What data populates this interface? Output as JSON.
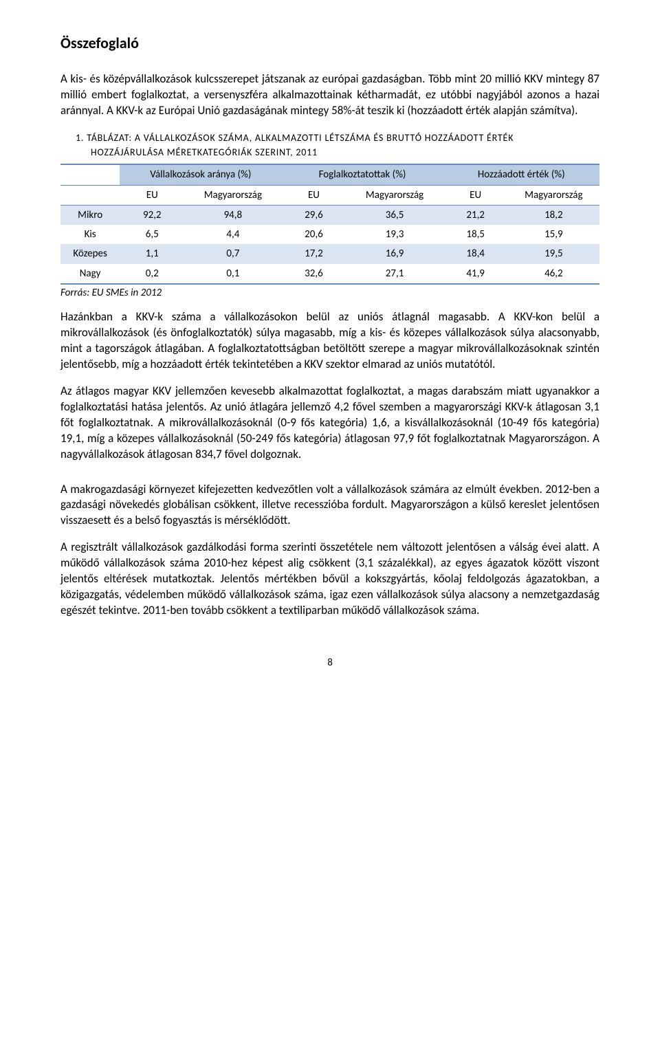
{
  "title": "Összefoglaló",
  "para1": "A kis- és középvállalkozások kulcsszerepet játszanak az európai gazdaságban. Több mint 20 millió KKV mintegy 87 millió embert foglalkoztat, a versenyszféra alkalmazottainak kétharmadát, ez utóbbi nagyjából azonos a hazai aránnyal. A KKV-k az Európai Unió gazdaságának mintegy 58%-át teszik ki (hozzáadott érték alapján számítva).",
  "caption_num": "1.  TÁBLÁZAT: A VÁLLALKOZÁSOK SZÁMA, ALKALMAZOTTI LÉTSZÁMA ÉS BRUTTÓ HOZZÁADOTT ÉRTÉK",
  "caption_rest": "HOZZÁJÁRULÁSA MÉRETKATEGÓRIÁK SZERINT, 2011",
  "table": {
    "group_headers": [
      "Vállalkozások aránya (%)",
      "Foglalkoztatottak (%)",
      "Hozzáadott érték (%)"
    ],
    "sub_headers": [
      "EU",
      "Magyarország",
      "EU",
      "Magyarország",
      "EU",
      "Magyarország"
    ],
    "rows": [
      {
        "label": "Mikro",
        "v": [
          "92,2",
          "94,8",
          "29,6",
          "36,5",
          "21,2",
          "18,2"
        ],
        "alt": true
      },
      {
        "label": "Kis",
        "v": [
          "6,5",
          "4,4",
          "20,6",
          "19,3",
          "18,5",
          "15,9"
        ],
        "alt": false
      },
      {
        "label": "Közepes",
        "v": [
          "1,1",
          "0,7",
          "17,2",
          "16,9",
          "18,4",
          "19,5"
        ],
        "alt": true
      },
      {
        "label": "Nagy",
        "v": [
          "0,2",
          "0,1",
          "32,6",
          "27,1",
          "41,9",
          "46,2"
        ],
        "alt": false
      }
    ],
    "header_bg": "#b8cce4",
    "alt_bg": "#dbe5f1",
    "border_color": "#6a8bbf"
  },
  "source": "Forrás: EU SMEs in 2012",
  "para2": "Hazánkban a KKV-k száma a vállalkozásokon belül az uniós átlagnál magasabb. A KKV-kon belül a mikrovállalkozások (és önfoglalkoztatók) súlya magasabb, míg a kis- és közepes vállalkozások súlya alacsonyabb, mint a tagországok átlagában. A foglalkoztatottságban betöltött szerepe a magyar mikrovállalkozásoknak szintén jelentősebb, míg a hozzáadott érték tekintetében a KKV szektor elmarad az uniós mutatótól.",
  "para3": "Az átlagos magyar KKV jellemzően kevesebb alkalmazottat foglalkoztat, a magas darabszám miatt ugyanakkor a foglalkoztatási hatása jelentős. Az unió átlagára jellemző 4,2 fővel szemben a magyarországi KKV-k átlagosan 3,1 főt foglalkoztatnak. A mikrovállalkozásoknál (0-9 fős kategória) 1,6, a kisvállalkozásoknál (10-49 fős kategória) 19,1, míg a közepes vállalkozásoknál (50-249 fős kategória) átlagosan 97,9 főt foglalkoztatnak Magyarországon. A nagyvállalkozások átlagosan 834,7 fővel dolgoznak.",
  "para4": "A makrogazdasági környezet kifejezetten kedvezőtlen volt a vállalkozások számára az elmúlt években. 2012-ben a gazdasági növekedés globálisan csökkent, illetve recesszióba fordult. Magyarországon a külső kereslet jelentősen visszaesett és a belső fogyasztás is mérséklődött.",
  "para5": "A regisztrált vállalkozások gazdálkodási forma szerinti összetétele nem változott jelentősen a válság évei alatt.  A működő vállalkozások száma 2010-hez képest alig csökkent (3,1 százalékkal), az egyes ágazatok között viszont jelentős eltérések mutatkoztak. Jelentős mértékben bővül a kokszgyártás, kőolaj feldolgozás ágazatokban, a közigazgatás, védelemben működő vállalkozások száma, igaz ezen vállalkozások súlya alacsony a nemzetgazdaság egészét tekintve. 2011-ben tovább csökkent a textiliparban működő vállalkozások száma.",
  "pagenum": "8"
}
